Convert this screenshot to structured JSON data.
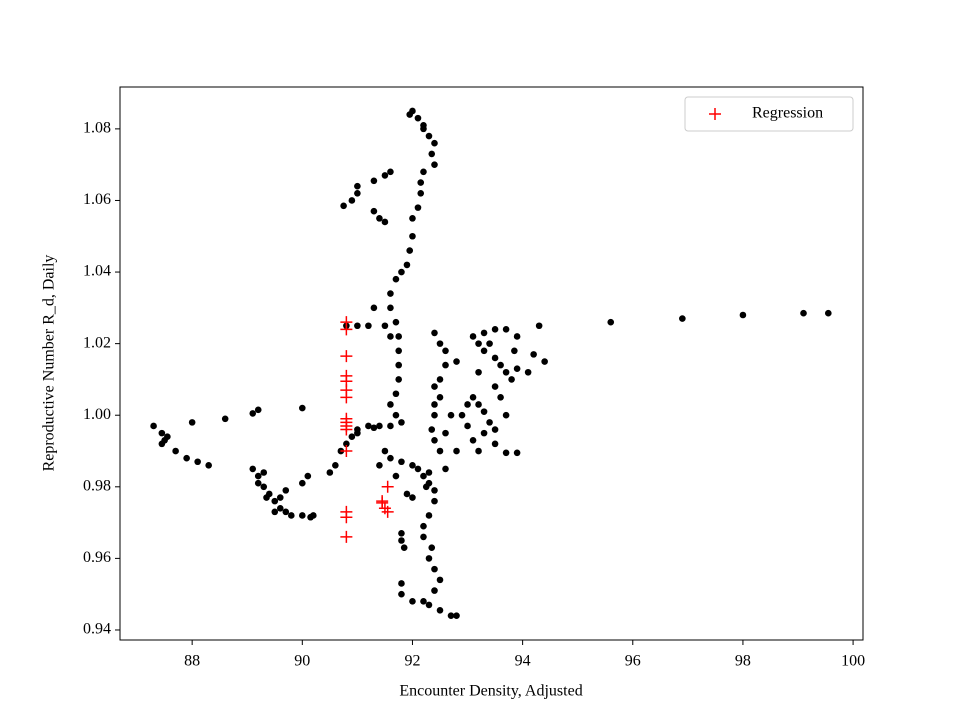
{
  "chart_data": {
    "type": "scatter",
    "xlabel": "Encounter Density, Adjusted",
    "ylabel": "Reproductive Number R_d, Daily",
    "xlim": [
      86.69,
      100.18
    ],
    "ylim": [
      0.9372,
      1.0917
    ],
    "xticks": [
      88,
      90,
      92,
      94,
      96,
      98,
      100
    ],
    "yticks": [
      {
        "value": 0.94,
        "label": "0.94"
      },
      {
        "value": 0.96,
        "label": "0.96"
      },
      {
        "value": 0.98,
        "label": "0.98"
      },
      {
        "value": 1.0,
        "label": "1.00"
      },
      {
        "value": 1.02,
        "label": "1.02"
      },
      {
        "value": 1.04,
        "label": "1.04"
      },
      {
        "value": 1.06,
        "label": "1.06"
      },
      {
        "value": 1.08,
        "label": "1.08"
      }
    ],
    "legend": "upper right",
    "series": [
      {
        "color": "#000000",
        "marker": "o",
        "x": [
          87.3,
          87.45,
          87.5,
          87.55,
          87.45,
          87.7,
          87.9,
          88.0,
          88.1,
          88.3,
          88.6,
          89.1,
          89.2,
          90.0,
          89.1,
          89.2,
          89.3,
          89.3,
          89.4,
          89.5,
          89.6,
          89.7,
          89.8,
          90.0,
          90.2,
          89.6,
          89.7,
          90.0,
          90.1,
          89.2,
          89.35,
          89.5,
          90.15,
          94.3,
          95.6,
          96.9,
          98.0,
          99.1,
          99.55,
          90.75,
          90.9,
          91.0,
          91.0,
          91.3,
          91.5,
          91.6,
          91.3,
          91.4,
          91.5,
          91.95,
          92.0,
          92.1,
          92.2,
          92.3,
          92.4,
          92.35,
          92.4,
          92.2,
          92.2,
          92.15,
          92.15,
          92.1,
          92.0,
          92.0,
          91.95,
          91.9,
          91.8,
          91.7,
          91.6,
          91.6,
          91.7,
          91.75,
          91.75,
          91.75,
          91.75,
          91.7,
          91.6,
          91.7,
          91.8,
          91.6,
          91.4,
          91.2,
          91.0,
          90.9,
          90.8,
          90.7,
          90.6,
          90.5,
          91.0,
          91.3,
          90.8,
          91.0,
          91.2,
          91.3,
          91.5,
          91.5,
          91.6,
          91.8,
          92.0,
          92.1,
          92.2,
          92.3,
          92.4,
          91.4,
          91.7,
          92.0,
          91.9,
          92.4,
          92.3,
          92.2,
          92.2,
          92.35,
          92.3,
          92.4,
          92.5,
          92.4,
          92.2,
          92.3,
          92.5,
          92.7,
          92.8,
          91.8,
          91.85,
          91.8,
          91.8,
          92.0,
          91.8,
          92.4,
          92.5,
          92.6,
          92.6,
          92.5,
          92.4,
          92.5,
          92.4,
          92.4,
          92.35,
          92.4,
          92.5,
          92.6,
          92.8,
          92.9,
          93.0,
          93.1,
          93.2,
          93.3,
          93.4,
          93.3,
          93.5,
          93.7,
          93.9,
          93.2,
          93.1,
          93.0,
          93.1,
          93.2,
          93.3,
          93.5,
          93.6,
          93.7,
          93.8,
          93.6,
          93.5,
          93.3,
          93.5,
          93.7,
          93.9,
          93.85,
          93.9,
          94.1,
          94.4,
          94.2,
          93.4,
          93.7,
          93.5,
          93.2,
          92.8,
          92.7,
          92.6,
          91.6,
          92.25,
          92.3
        ],
        "values": [
          0.997,
          0.995,
          0.993,
          0.994,
          0.992,
          0.99,
          0.988,
          0.998,
          0.987,
          0.986,
          0.999,
          1.0005,
          1.0015,
          1.002,
          0.985,
          0.983,
          0.984,
          0.98,
          0.978,
          0.976,
          0.974,
          0.973,
          0.972,
          0.972,
          0.972,
          0.977,
          0.979,
          0.981,
          0.983,
          0.981,
          0.977,
          0.973,
          0.9715,
          1.025,
          1.026,
          1.027,
          1.028,
          1.0285,
          1.0285,
          1.0585,
          1.06,
          1.062,
          1.064,
          1.0655,
          1.067,
          1.068,
          1.057,
          1.055,
          1.054,
          1.084,
          1.085,
          1.083,
          1.081,
          1.078,
          1.076,
          1.073,
          1.07,
          1.08,
          1.068,
          1.065,
          1.062,
          1.058,
          1.055,
          1.05,
          1.046,
          1.042,
          1.04,
          1.038,
          1.034,
          1.03,
          1.026,
          1.022,
          1.018,
          1.014,
          1.01,
          1.006,
          1.003,
          1.0,
          0.998,
          0.997,
          0.997,
          0.997,
          0.996,
          0.994,
          0.992,
          0.99,
          0.986,
          0.984,
          0.995,
          0.9965,
          1.025,
          1.025,
          1.025,
          1.03,
          1.025,
          0.99,
          0.988,
          0.987,
          0.986,
          0.985,
          0.983,
          0.981,
          0.979,
          0.986,
          0.983,
          0.977,
          0.978,
          0.976,
          0.972,
          0.969,
          0.966,
          0.963,
          0.96,
          0.957,
          0.954,
          0.951,
          0.948,
          0.947,
          0.9455,
          0.944,
          0.944,
          0.967,
          0.963,
          0.953,
          0.95,
          0.948,
          0.965,
          1.023,
          1.02,
          1.018,
          1.014,
          1.01,
          1.008,
          1.005,
          1.003,
          1.0,
          0.996,
          0.993,
          0.99,
          0.985,
          0.99,
          1.0,
          1.003,
          1.005,
          1.003,
          1.001,
          0.998,
          0.995,
          0.992,
          0.9895,
          0.9895,
          0.99,
          0.993,
          0.997,
          1.022,
          1.02,
          1.018,
          1.016,
          1.014,
          1.012,
          1.01,
          1.005,
          1.008,
          1.023,
          1.024,
          1.024,
          1.022,
          1.018,
          1.013,
          1.012,
          1.015,
          1.017,
          1.02,
          1.0,
          0.996,
          1.012,
          1.015,
          1.0,
          0.995,
          1.022,
          0.98,
          0.984
        ]
      },
      {
        "name": "Regression",
        "color": "#ff0000",
        "marker": "+",
        "x": [
          90.8,
          90.8,
          90.8,
          90.8,
          90.8,
          90.8,
          90.8,
          90.8,
          90.8,
          90.8,
          90.8,
          90.8,
          90.8,
          90.8,
          90.8,
          91.45,
          91.5,
          91.55,
          91.55,
          91.45
        ],
        "values": [
          1.026,
          1.024,
          1.0165,
          1.011,
          1.0095,
          1.007,
          1.005,
          0.999,
          0.998,
          0.997,
          0.996,
          0.99,
          0.973,
          0.9715,
          0.966,
          0.976,
          0.974,
          0.973,
          0.98,
          0.9755
        ]
      }
    ]
  }
}
